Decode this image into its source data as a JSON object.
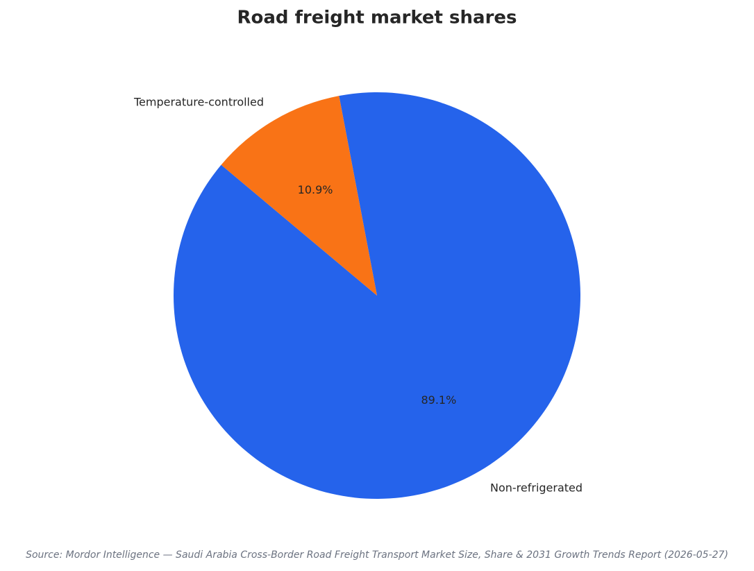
{
  "chart_data": {
    "type": "pie",
    "title": "Road freight market shares",
    "categories": [
      "Non-refrigerated",
      "Temperature-controlled"
    ],
    "values": [
      89.1,
      10.9
    ],
    "value_labels": [
      "89.1%",
      "10.9%"
    ],
    "colors": [
      "#2563eb",
      "#f97316"
    ],
    "startangle": 140,
    "source": "Source: Mordor Intelligence — Saudi Arabia Cross-Border Road Freight Transport Market Size, Share & 2031 Growth Trends Report (2026-05-27)"
  }
}
